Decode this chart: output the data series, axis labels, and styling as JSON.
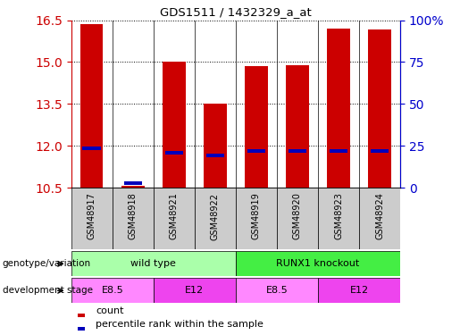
{
  "title": "GDS1511 / 1432329_a_at",
  "samples": [
    "GSM48917",
    "GSM48918",
    "GSM48921",
    "GSM48922",
    "GSM48919",
    "GSM48920",
    "GSM48923",
    "GSM48924"
  ],
  "count_values": [
    16.35,
    10.55,
    15.0,
    13.5,
    14.85,
    14.9,
    16.2,
    16.15
  ],
  "percentile_values": [
    11.9,
    10.65,
    11.75,
    11.65,
    11.82,
    11.82,
    11.82,
    11.82
  ],
  "ylim_left": [
    10.5,
    16.5
  ],
  "ylim_right": [
    0,
    100
  ],
  "yticks_left": [
    10.5,
    12.0,
    13.5,
    15.0,
    16.5
  ],
  "yticks_right": [
    0,
    25,
    50,
    75,
    100
  ],
  "ytick_labels_right": [
    "0",
    "25",
    "50",
    "75",
    "100%"
  ],
  "bar_color": "#cc0000",
  "percentile_color": "#0000bb",
  "bar_bottom": 10.5,
  "genotype_groups": [
    {
      "label": "wild type",
      "start": 0,
      "end": 4,
      "color": "#aaffaa"
    },
    {
      "label": "RUNX1 knockout",
      "start": 4,
      "end": 8,
      "color": "#44ee44"
    }
  ],
  "stage_groups": [
    {
      "label": "E8.5",
      "start": 0,
      "end": 2,
      "color": "#ff88ff"
    },
    {
      "label": "E12",
      "start": 2,
      "end": 4,
      "color": "#ee44ee"
    },
    {
      "label": "E8.5",
      "start": 4,
      "end": 6,
      "color": "#ff88ff"
    },
    {
      "label": "E12",
      "start": 6,
      "end": 8,
      "color": "#ee44ee"
    }
  ],
  "legend_count_label": "count",
  "legend_percentile_label": "percentile rank within the sample",
  "background_color": "#ffffff",
  "tick_label_color_left": "#cc0000",
  "tick_label_color_right": "#0000cc",
  "xlabel_bg_color": "#cccccc",
  "genotype_row_label": "genotype/variation",
  "stage_row_label": "development stage"
}
